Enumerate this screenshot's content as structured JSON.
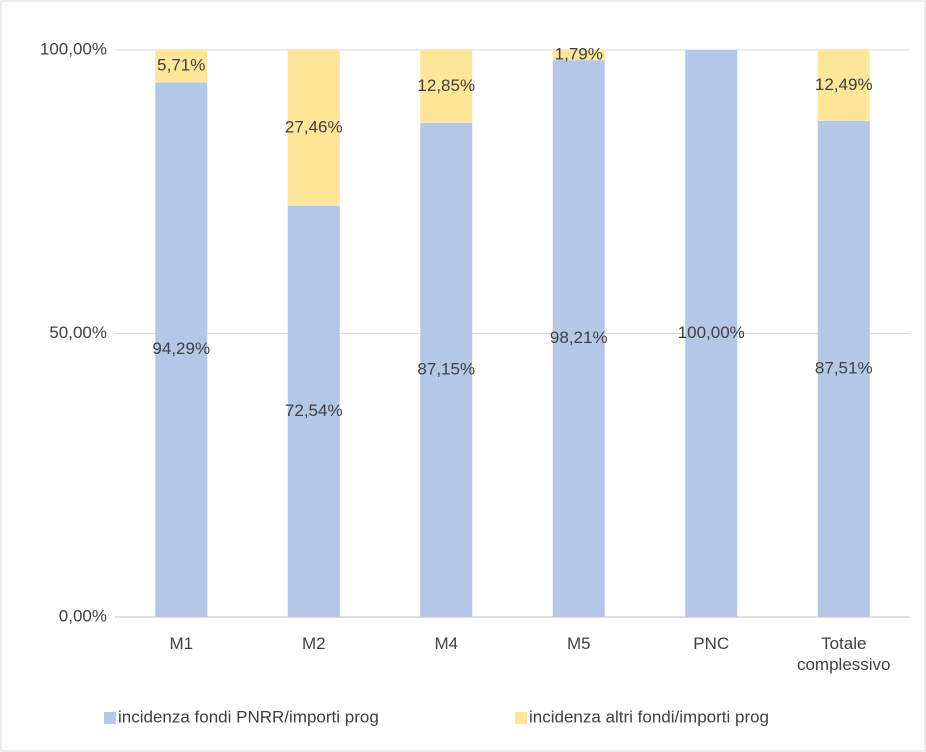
{
  "chart_data": {
    "type": "stacked_bar",
    "categories": [
      "M1",
      "M2",
      "M4",
      "M5",
      "PNC",
      "Totale complessivo"
    ],
    "series": [
      {
        "name": "incidenza fondi PNRR/importi prog",
        "color": "#b4c7e7",
        "values": [
          94.29,
          72.54,
          87.15,
          98.21,
          100,
          87.51
        ],
        "value_labels": [
          "94,29%",
          "72,54%",
          "87,15%",
          "98,21%",
          "100,00%",
          "87,51%"
        ]
      },
      {
        "name": "incidenza altri fondi/importi prog",
        "color": "#ffe699",
        "values": [
          5.71,
          27.46,
          12.85,
          1.79,
          0,
          12.49
        ],
        "value_labels": [
          "5,71%",
          "27,46%",
          "12,85%",
          "1,79%",
          null,
          "12,49%"
        ]
      }
    ],
    "ylim": [
      0,
      100
    ],
    "yticks": [
      {
        "value": 0,
        "label": "0,00%"
      },
      {
        "value": 50,
        "label": "50,00%"
      },
      {
        "value": 100,
        "label": "100,00%"
      }
    ],
    "grid": true,
    "legend": "bottom"
  }
}
